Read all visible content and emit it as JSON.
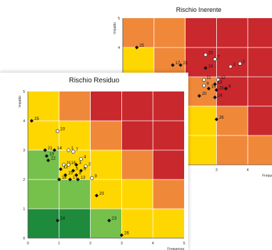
{
  "chart_data": [
    {
      "type": "scatter",
      "title": "Rischio Inerente",
      "xlabel": "Frequenza",
      "ylabel": "Impatto",
      "xlim": [
        0,
        5
      ],
      "ylim": [
        0,
        5
      ],
      "x_ticks": [
        "0",
        "1",
        "2",
        "3",
        "4",
        "5"
      ],
      "y_ticks": [
        "0",
        "1",
        "2",
        "3",
        "4",
        "5"
      ],
      "grid": true,
      "zone_colors": {
        "dark_green": "#1e8a3c",
        "green": "#76c04c",
        "yellow": "#ffd700",
        "orange": "#f0883a",
        "red": "#c9282d"
      },
      "zones": [
        [
          "green",
          "yellow",
          "yellow",
          "orange",
          "orange"
        ],
        [
          "green",
          "yellow",
          "yellow",
          "orange",
          "red"
        ],
        [
          "yellow",
          "yellow",
          "orange",
          "red",
          "red"
        ],
        [
          "yellow",
          "orange",
          "red",
          "red",
          "red"
        ],
        [
          "orange",
          "orange",
          "red",
          "red",
          "red"
        ]
      ],
      "points": [
        {
          "label": "25",
          "x": 0.45,
          "y": 4.0,
          "marker": "filled"
        },
        {
          "label": "17",
          "x": 1.6,
          "y": 3.4,
          "marker": "filled"
        },
        {
          "label": "21",
          "x": 1.85,
          "y": 3.4,
          "marker": "filled"
        },
        {
          "label": "10",
          "x": 2.65,
          "y": 3.75,
          "marker": "open"
        },
        {
          "label": "7",
          "x": 2.95,
          "y": 3.6,
          "marker": "open"
        },
        {
          "label": "14",
          "x": 2.65,
          "y": 3.3,
          "marker": "filled"
        },
        {
          "label": "1",
          "x": 3.45,
          "y": 3.35,
          "marker": "open"
        },
        {
          "label": "2",
          "x": 3.75,
          "y": 3.45,
          "marker": "open"
        },
        {
          "label": "12",
          "x": 3.05,
          "y": 2.9,
          "marker": "open"
        },
        {
          "label": "11",
          "x": 2.6,
          "y": 2.9,
          "marker": "open"
        },
        {
          "label": "9",
          "x": 2.6,
          "y": 2.7,
          "marker": "open"
        },
        {
          "label": "13",
          "x": 2.95,
          "y": 2.75,
          "marker": "filled"
        },
        {
          "label": "16",
          "x": 2.75,
          "y": 2.6,
          "marker": "filled"
        },
        {
          "label": "23",
          "x": 3.0,
          "y": 2.55,
          "marker": "filled"
        },
        {
          "label": "8",
          "x": 3.3,
          "y": 2.6,
          "marker": "filled"
        },
        {
          "label": "20",
          "x": 2.45,
          "y": 2.35,
          "marker": "filled"
        },
        {
          "label": "24",
          "x": 2.95,
          "y": 2.3,
          "marker": "filled"
        },
        {
          "label": "26",
          "x": 3.0,
          "y": 1.55,
          "marker": "filled"
        }
      ]
    },
    {
      "type": "scatter",
      "title": "Rischio Residuo",
      "xlabel": "Frequenza",
      "ylabel": "Impatto",
      "xlim": [
        0,
        5
      ],
      "ylim": [
        0,
        5
      ],
      "x_ticks": [
        "0",
        "1",
        "2",
        "3",
        "4",
        "5"
      ],
      "y_ticks": [
        "0",
        "1",
        "2",
        "3",
        "4",
        "5"
      ],
      "grid": true,
      "zone_colors": {
        "dark_green": "#1e8a3c",
        "green": "#76c04c",
        "yellow": "#ffd700",
        "orange": "#f0883a",
        "red": "#c9282d"
      },
      "zones": [
        [
          "dark_green",
          "dark_green",
          "green",
          "yellow",
          "yellow"
        ],
        [
          "green",
          "green",
          "yellow",
          "yellow",
          "orange"
        ],
        [
          "green",
          "yellow",
          "yellow",
          "orange",
          "red"
        ],
        [
          "yellow",
          "yellow",
          "orange",
          "red",
          "red"
        ],
        [
          "yellow",
          "orange",
          "red",
          "red",
          "red"
        ]
      ],
      "points": [
        {
          "label": "25",
          "x": 0.12,
          "y": 4.0,
          "marker": "filled"
        },
        {
          "label": "10",
          "x": 0.95,
          "y": 3.65,
          "marker": "open"
        },
        {
          "label": "21",
          "x": 0.55,
          "y": 3.0,
          "marker": "filled"
        },
        {
          "label": "14",
          "x": 0.85,
          "y": 3.0,
          "marker": "filled"
        },
        {
          "label": "1",
          "x": 1.3,
          "y": 3.0,
          "marker": "open"
        },
        {
          "label": "7",
          "x": 1.45,
          "y": 2.95,
          "marker": "open"
        },
        {
          "label": "4",
          "x": 1.7,
          "y": 2.7,
          "marker": "open"
        },
        {
          "label": "19",
          "x": 0.6,
          "y": 2.8,
          "marker": "filled"
        },
        {
          "label": "22",
          "x": 0.65,
          "y": 2.65,
          "marker": "filled"
        },
        {
          "label": "11",
          "x": 1.15,
          "y": 2.5,
          "marker": "open"
        },
        {
          "label": "16",
          "x": 1.3,
          "y": 2.5,
          "marker": "open"
        },
        {
          "label": "3",
          "x": 1.55,
          "y": 2.5,
          "marker": "filled"
        },
        {
          "label": "2",
          "x": 1.85,
          "y": 2.45,
          "marker": "open"
        },
        {
          "label": "12",
          "x": 1.05,
          "y": 2.35,
          "marker": "filled"
        },
        {
          "label": "5",
          "x": 1.45,
          "y": 2.3,
          "marker": "filled"
        },
        {
          "label": "6",
          "x": 1.7,
          "y": 2.3,
          "marker": "filled"
        },
        {
          "label": "15",
          "x": 1.2,
          "y": 2.15,
          "marker": "filled"
        },
        {
          "label": "8",
          "x": 1.55,
          "y": 2.15,
          "marker": "filled"
        },
        {
          "label": "18",
          "x": 1.0,
          "y": 2.0,
          "marker": "filled"
        },
        {
          "label": "17",
          "x": 1.35,
          "y": 2.0,
          "marker": "filled"
        },
        {
          "label": "13",
          "x": 1.6,
          "y": 2.0,
          "marker": "filled"
        },
        {
          "label": "9",
          "x": 2.05,
          "y": 2.05,
          "marker": "open"
        },
        {
          "label": "20",
          "x": 2.2,
          "y": 1.45,
          "marker": "filled"
        },
        {
          "label": "24",
          "x": 0.95,
          "y": 0.6,
          "marker": "filled"
        },
        {
          "label": "23",
          "x": 2.6,
          "y": 0.6,
          "marker": "filled"
        },
        {
          "label": "26",
          "x": 3.0,
          "y": 0.1,
          "marker": "filled"
        }
      ]
    }
  ]
}
